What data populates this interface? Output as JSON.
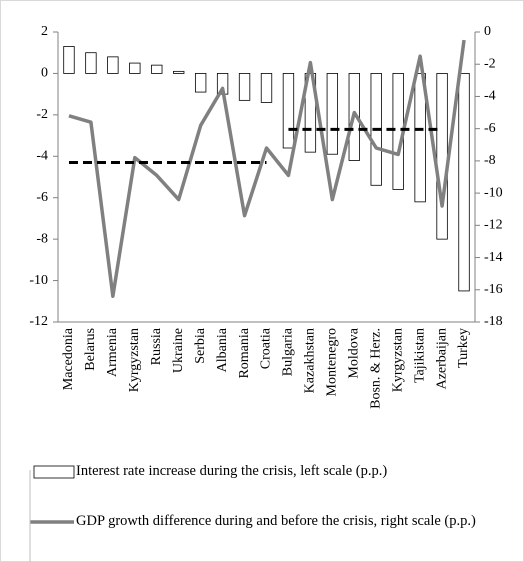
{
  "chart_data": {
    "type": "bar-line",
    "categories": [
      "Macedonia",
      "Belarus",
      "Armenia",
      "Kyrgyzstan",
      "Russia",
      "Ukraine",
      "Serbia",
      "Albania",
      "Romania",
      "Croatia",
      "Bulgaria",
      "Kazakhstan",
      "Montenegro",
      "Moldova",
      "Bosn. & Herz.",
      "Kyrgyzstan",
      "Tajikistan",
      "Azerbaijan",
      "Turkey"
    ],
    "series": [
      {
        "name": "Interest rate increase during the crisis, left scale (p.p.)",
        "type": "bar",
        "color": "#ffffff",
        "values": [
          1.3,
          1.0,
          0.8,
          0.5,
          0.4,
          0.1,
          -0.9,
          -1.0,
          -1.3,
          -1.4,
          -3.6,
          -3.8,
          -3.9,
          -4.2,
          -5.4,
          -5.6,
          -6.2,
          -8.0,
          -10.5
        ]
      },
      {
        "name": "GDP growth difference during and before the crisis, right scale (p.p.)",
        "type": "line",
        "axis": "y2",
        "color": "#808080",
        "values": [
          -5.2,
          -5.6,
          -16.4,
          -7.8,
          -8.9,
          -10.4,
          -5.8,
          -3.5,
          -11.4,
          -7.2,
          -8.9,
          -1.9,
          -10.4,
          -5.0,
          -7.2,
          -7.6,
          -1.5,
          -10.8,
          -0.5
        ]
      }
    ],
    "reference_lines": [
      {
        "color": "#000000",
        "values": [
          -4.3,
          -4.3,
          -4.3,
          -4.3,
          -4.3,
          -4.3,
          -4.3,
          -4.3,
          -4.3,
          -4.3,
          null,
          null,
          null,
          null,
          null,
          null,
          null,
          null,
          null
        ]
      },
      {
        "color": "#000000",
        "values": [
          null,
          null,
          null,
          null,
          null,
          null,
          null,
          null,
          null,
          null,
          -2.7,
          -2.7,
          -2.7,
          -2.7,
          -2.7,
          -2.7,
          -2.7,
          -2.7,
          null
        ]
      }
    ],
    "ylim": [
      -12,
      2
    ],
    "yticks": [
      2,
      0,
      -2,
      -4,
      -6,
      -8,
      -10,
      -12
    ],
    "y2lim": [
      -18,
      0
    ],
    "y2ticks": [
      0,
      -2,
      -4,
      -6,
      -8,
      -10,
      -12,
      -14,
      -16,
      -18
    ]
  }
}
